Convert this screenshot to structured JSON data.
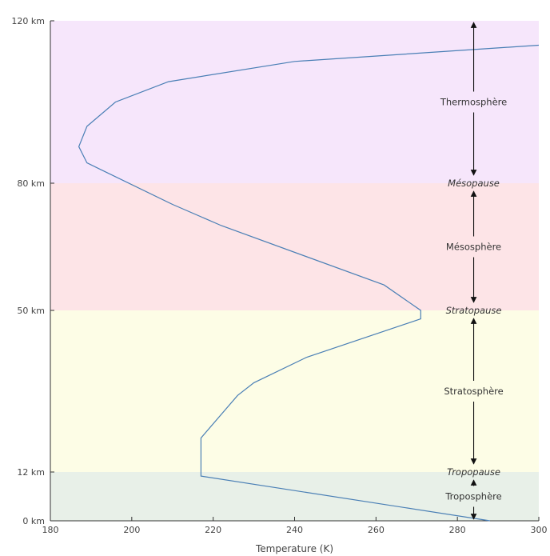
{
  "chart_data": {
    "type": "line",
    "xlabel": "Temperature (K)",
    "xlim": [
      180,
      300
    ],
    "x_ticks": [
      180,
      200,
      220,
      240,
      260,
      280,
      300
    ],
    "y_ticks": [
      {
        "value": 0,
        "label": "0 km"
      },
      {
        "value": 12,
        "label": "12 km"
      },
      {
        "value": 50,
        "label": "50 km"
      },
      {
        "value": 80,
        "label": "80 km"
      },
      {
        "value": 120,
        "label": "120 km"
      }
    ],
    "series": [
      {
        "points": [
          {
            "x": 288,
            "y": 0
          },
          {
            "x": 217,
            "y": 11
          },
          {
            "x": 217,
            "y": 20
          },
          {
            "x": 226,
            "y": 30
          },
          {
            "x": 230,
            "y": 33
          },
          {
            "x": 243,
            "y": 39
          },
          {
            "x": 271,
            "y": 48
          },
          {
            "x": 271,
            "y": 50
          },
          {
            "x": 262,
            "y": 56
          },
          {
            "x": 222,
            "y": 70
          },
          {
            "x": 210,
            "y": 75
          },
          {
            "x": 189,
            "y": 85
          },
          {
            "x": 187,
            "y": 89
          },
          {
            "x": 189,
            "y": 94
          },
          {
            "x": 196,
            "y": 100
          },
          {
            "x": 209,
            "y": 105
          },
          {
            "x": 240,
            "y": 110
          },
          {
            "x": 300,
            "y": 114
          }
        ]
      }
    ],
    "bands": [
      {
        "from": 0,
        "to": 12,
        "color": "#e8f0e8",
        "label": "Troposphère"
      },
      {
        "from": 12,
        "to": 50,
        "color": "#fdfde6",
        "label": "Stratosphère"
      },
      {
        "from": 50,
        "to": 80,
        "color": "#fde4e7",
        "label": "Mésosphère"
      },
      {
        "from": 80,
        "to": 120,
        "color": "#f6e6fb",
        "label": "Thermosphère"
      }
    ],
    "boundaries": [
      {
        "value": 12,
        "label": "Tropopause"
      },
      {
        "value": 50,
        "label": "Stratopause"
      },
      {
        "value": 80,
        "label": "Mésopause"
      }
    ],
    "arrow_x": 284
  }
}
